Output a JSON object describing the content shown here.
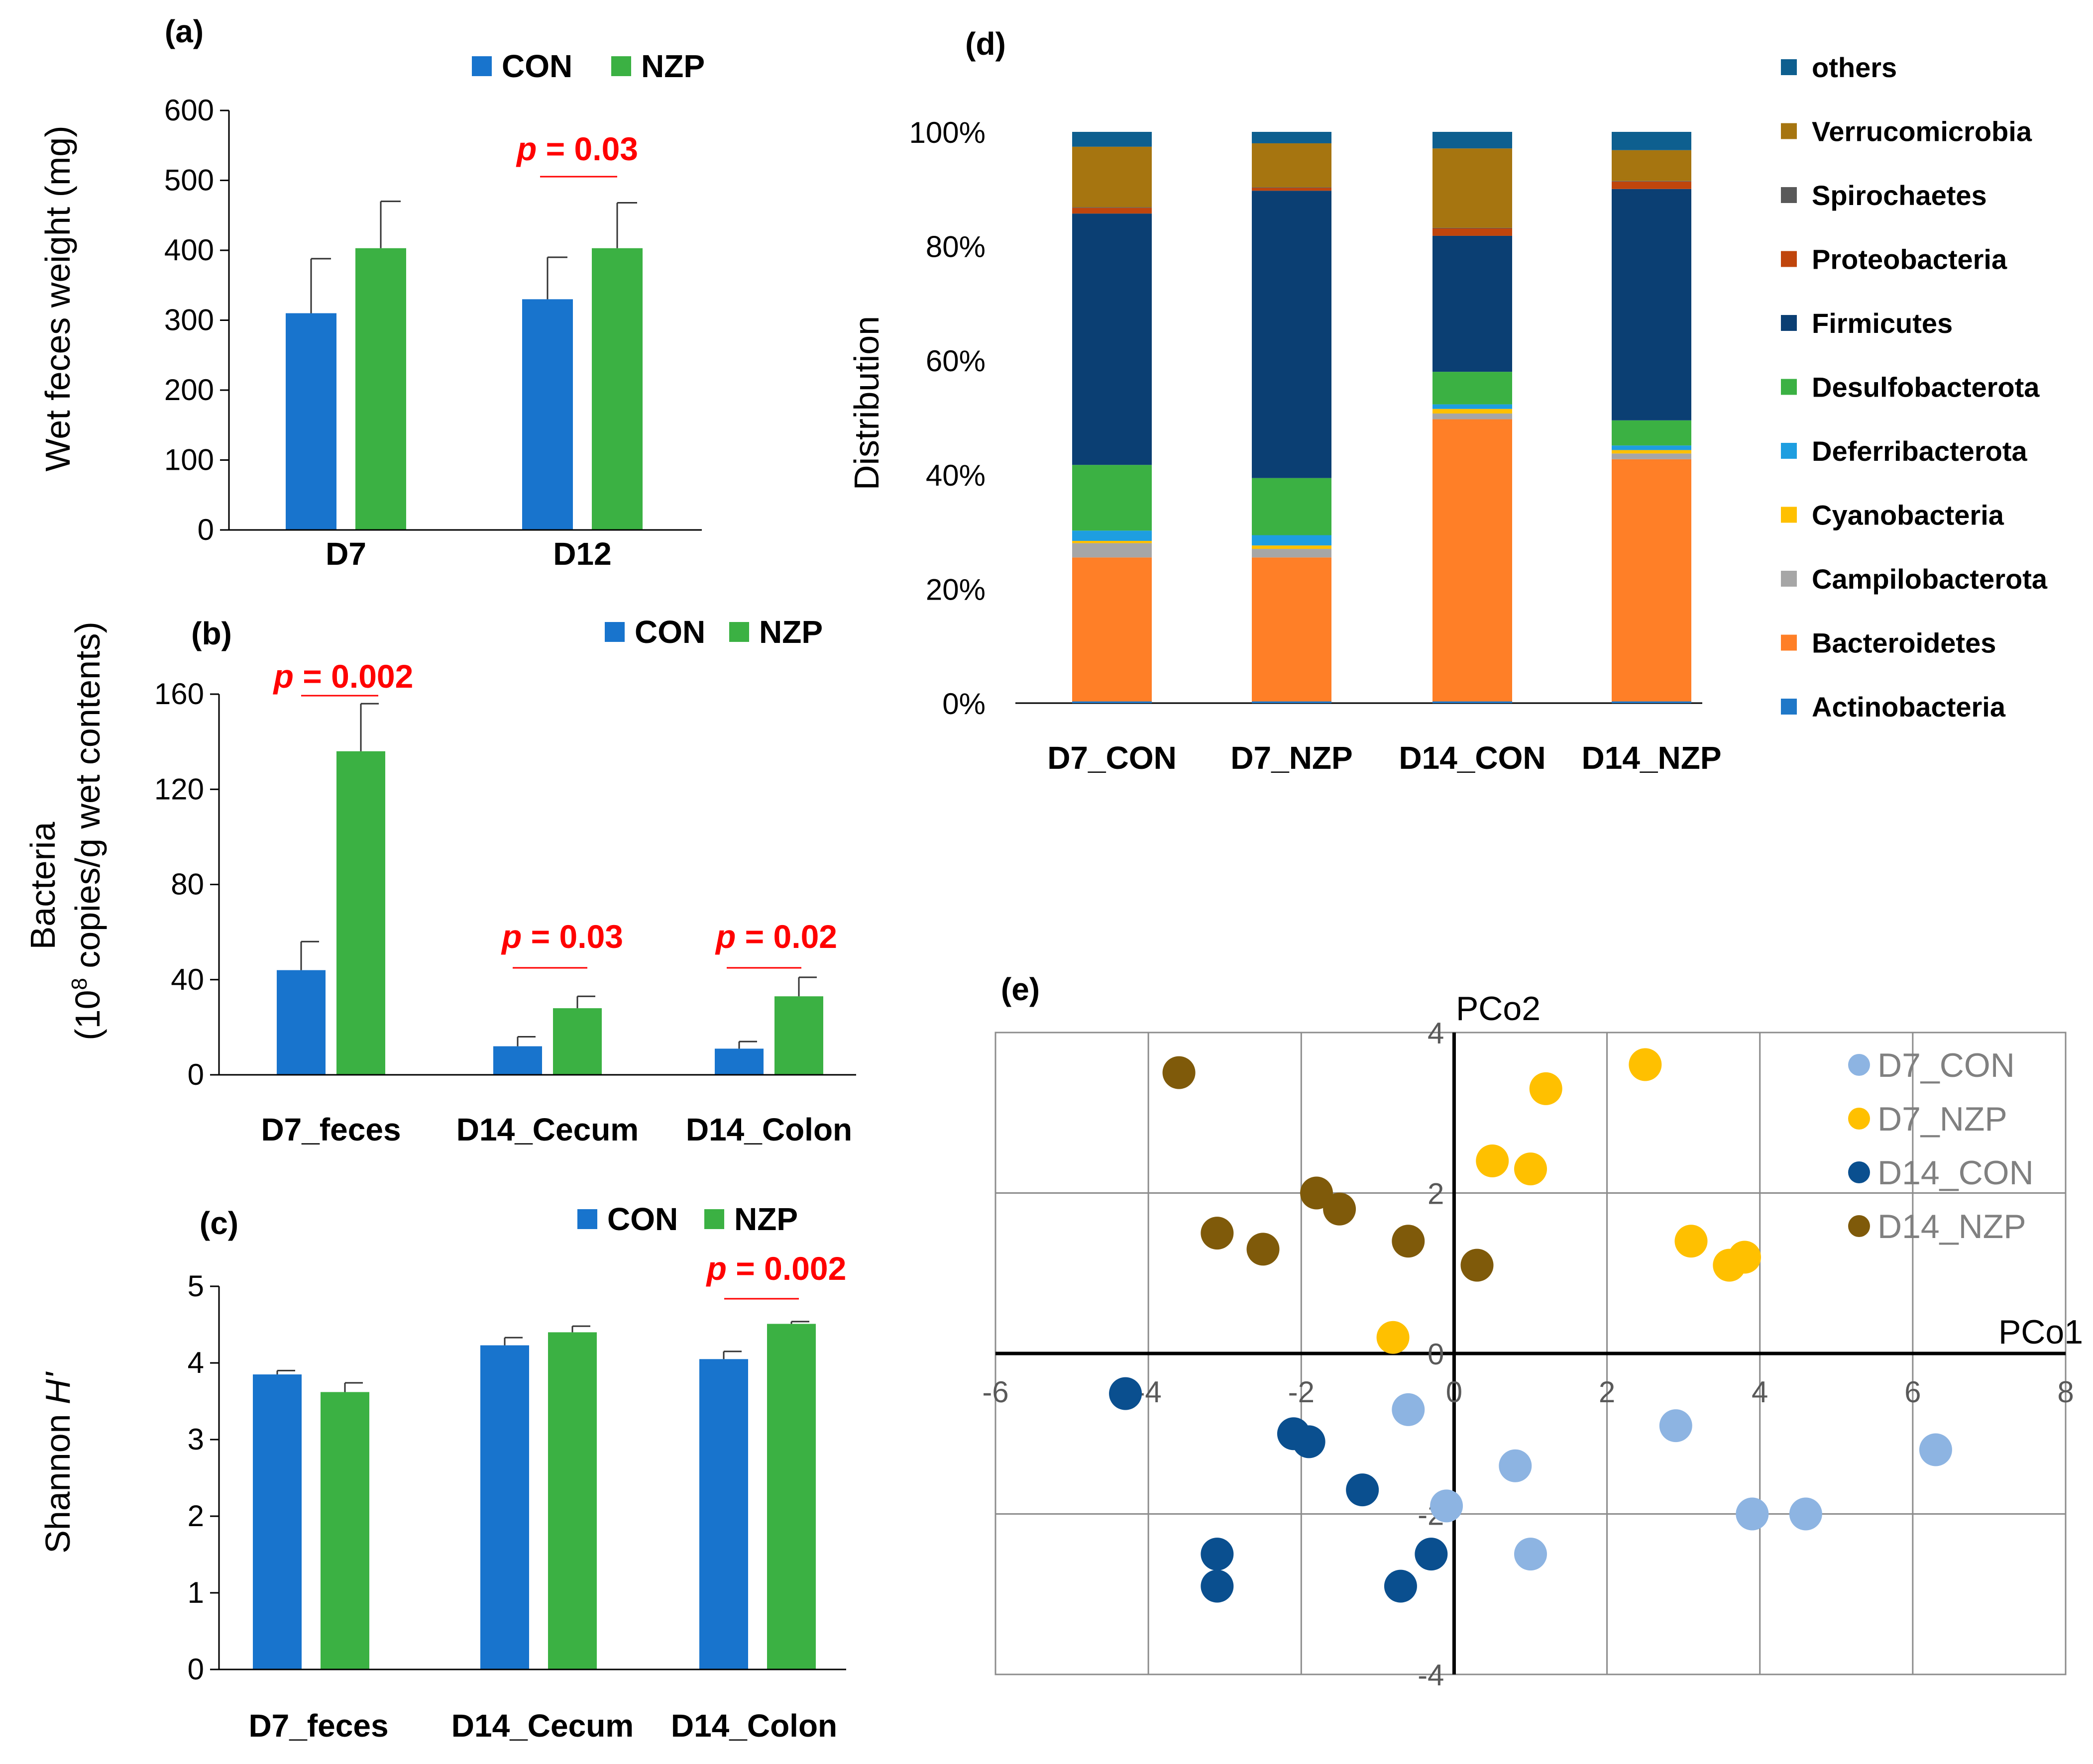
{
  "colors": {
    "CON": "#1874CD",
    "NZP": "#3BB143",
    "sig": "#ff0000",
    "D7_CON": "#8DB4E2",
    "D7_NZP": "#FFC000",
    "D14_CON": "#0A4F8F",
    "D14_NZP": "#7F5A0A"
  },
  "chart_data": [
    {
      "id": "a",
      "panel": "(a)",
      "type": "bar",
      "ylabel": "Wet feces weight (mg)",
      "categories": [
        "D7",
        "D12"
      ],
      "ylim": [
        0,
        600
      ],
      "yticks": [
        0,
        100,
        200,
        300,
        400,
        500,
        600
      ],
      "series": [
        {
          "name": "CON",
          "values": [
            310,
            330
          ],
          "errors": [
            78,
            60
          ]
        },
        {
          "name": "NZP",
          "values": [
            403,
            403
          ],
          "errors": [
            67,
            65
          ]
        }
      ],
      "annotations": [
        {
          "category_index": 1,
          "label": "p = 0.03",
          "prefix": "p",
          "rest": " = 0.03"
        }
      ]
    },
    {
      "id": "b",
      "panel": "(b)",
      "type": "bar",
      "ylabel_line1": "Bacteria",
      "ylabel_line2_prefix": "(10",
      "ylabel_line2_sup": "8",
      "ylabel_line2_suffix": " copies/g wet contents)",
      "categories": [
        "D7_feces",
        "D14_Cecum",
        "D14_Colon"
      ],
      "ylim": [
        0,
        160
      ],
      "yticks": [
        0,
        40,
        80,
        120,
        160
      ],
      "series": [
        {
          "name": "CON",
          "values": [
            44,
            12,
            11
          ],
          "errors": [
            12,
            4,
            3
          ]
        },
        {
          "name": "NZP",
          "values": [
            136,
            28,
            33
          ],
          "errors": [
            20,
            5,
            8
          ]
        }
      ],
      "annotations": [
        {
          "category_index": 0,
          "label": "p = 0.002",
          "prefix": "p",
          "rest": " = 0.002"
        },
        {
          "category_index": 1,
          "label": "p = 0.03",
          "prefix": "p",
          "rest": " = 0.03"
        },
        {
          "category_index": 2,
          "label": "p = 0.02",
          "prefix": "p",
          "rest": " = 0.02"
        }
      ]
    },
    {
      "id": "c",
      "panel": "(c)",
      "type": "bar",
      "ylabel_main": "Shannon ",
      "ylabel_italic": "H'",
      "categories": [
        "D7_feces",
        "D14_Cecum",
        "D14_Colon"
      ],
      "ylim": [
        0,
        5
      ],
      "yticks": [
        0,
        1,
        2,
        3,
        4,
        5
      ],
      "series": [
        {
          "name": "CON",
          "values": [
            3.85,
            4.23,
            4.05
          ],
          "errors": [
            0.05,
            0.1,
            0.1
          ]
        },
        {
          "name": "NZP",
          "values": [
            3.62,
            4.4,
            4.51
          ],
          "errors": [
            0.12,
            0.08,
            0.03
          ]
        }
      ],
      "annotations": [
        {
          "category_index": 2,
          "label": "p = 0.002",
          "prefix": "p",
          "rest": " = 0.002"
        }
      ]
    },
    {
      "id": "d",
      "panel": "(d)",
      "type": "bar",
      "stacked": true,
      "ylabel": "Distribution",
      "categories": [
        "D7_CON",
        "D7_NZP",
        "D14_CON",
        "D14_NZP"
      ],
      "yticks": [
        0,
        20,
        40,
        60,
        80,
        100
      ],
      "ytick_suffix": "%",
      "series": [
        {
          "name": "Actinobacteria",
          "color": "#1F78C8",
          "values": [
            0.3,
            0.3,
            0.3,
            0.3
          ]
        },
        {
          "name": "Bacteroidetes",
          "color": "#FF7F27",
          "values": [
            25.2,
            25.2,
            49.4,
            42.4
          ]
        },
        {
          "name": "Campilobacterota",
          "color": "#A6A6A6",
          "values": [
            2.5,
            1.5,
            1.0,
            1.0
          ]
        },
        {
          "name": "Cyanobacteria",
          "color": "#FFC000",
          "values": [
            0.4,
            0.6,
            0.8,
            0.6
          ]
        },
        {
          "name": "Deferribacterota",
          "color": "#1E9EE0",
          "values": [
            1.8,
            1.8,
            0.8,
            0.8
          ]
        },
        {
          "name": "Desulfobacterota",
          "color": "#3BB143",
          "values": [
            11.5,
            10.0,
            5.7,
            4.4
          ]
        },
        {
          "name": "Firmicutes",
          "color": "#0B3F73",
          "values": [
            44.0,
            50.3,
            23.8,
            40.5
          ]
        },
        {
          "name": "Proteobacteria",
          "color": "#C0450C",
          "values": [
            1.0,
            0.5,
            1.3,
            1.3
          ]
        },
        {
          "name": "Spirochaetes",
          "color": "#595959",
          "values": [
            0.1,
            0.1,
            0.1,
            0.1
          ]
        },
        {
          "name": "Verrucomicrobia",
          "color": "#A67510",
          "values": [
            10.6,
            7.7,
            13.9,
            5.4
          ]
        },
        {
          "name": "others",
          "color": "#0E5F8F",
          "values": [
            2.6,
            2.0,
            2.9,
            3.2
          ]
        }
      ]
    },
    {
      "id": "e",
      "panel": "(e)",
      "type": "scatter",
      "xlabel": "PCo1",
      "ylabel": "PCo2",
      "xlim": [
        -6,
        8
      ],
      "ylim": [
        -4,
        4
      ],
      "xticks": [
        -6,
        -4,
        -2,
        0,
        2,
        4,
        6,
        8
      ],
      "yticks": [
        -4,
        -2,
        2,
        4
      ],
      "zero_label": "0",
      "series": [
        {
          "name": "D7_CON",
          "points": [
            [
              -0.6,
              -0.7
            ],
            [
              -0.1,
              -1.9
            ],
            [
              0.8,
              -1.4
            ],
            [
              1.0,
              -2.5
            ],
            [
              2.9,
              -0.9
            ],
            [
              3.9,
              -2.0
            ],
            [
              4.6,
              -2.0
            ],
            [
              6.3,
              -1.2
            ]
          ]
        },
        {
          "name": "D7_NZP",
          "points": [
            [
              -0.8,
              0.2
            ],
            [
              0.5,
              2.4
            ],
            [
              1.0,
              2.3
            ],
            [
              1.2,
              3.3
            ],
            [
              2.5,
              3.6
            ],
            [
              3.1,
              1.4
            ],
            [
              3.6,
              1.1
            ],
            [
              3.8,
              1.2
            ]
          ]
        },
        {
          "name": "D14_CON",
          "points": [
            [
              -4.3,
              -0.5
            ],
            [
              -2.1,
              -1.0
            ],
            [
              -1.9,
              -1.1
            ],
            [
              -1.2,
              -1.7
            ],
            [
              -0.3,
              -2.5
            ],
            [
              -0.7,
              -2.9
            ],
            [
              -3.1,
              -2.5
            ],
            [
              -3.1,
              -2.9
            ]
          ]
        },
        {
          "name": "D14_NZP",
          "points": [
            [
              -3.6,
              3.5
            ],
            [
              -3.1,
              1.5
            ],
            [
              -2.5,
              1.3
            ],
            [
              -1.8,
              2.0
            ],
            [
              -1.5,
              1.8
            ],
            [
              -0.6,
              1.4
            ],
            [
              0.3,
              1.1
            ]
          ]
        }
      ]
    }
  ]
}
